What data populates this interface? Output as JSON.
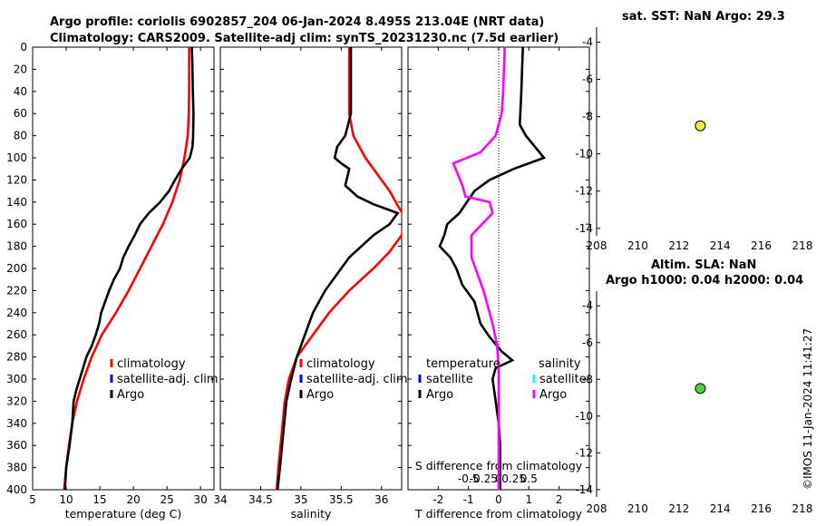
{
  "header": {
    "title_line1": "Argo profile: coriolis 6902857_204 06-Jan-2024 8.495S 213.04E (NRT data)",
    "title_line2": "Climatology: CARS2009. Satellite-adj clim: synTS_20231230.nc (7.5d earlier)"
  },
  "credit": "©IMOS 11-Jan-2024 11:41:27",
  "colors": {
    "climatology": "#ff0000",
    "satellite": "#0000ff",
    "argo": "#000000",
    "sal_diff": "#ff00ff",
    "sal_sat": "#00ffff",
    "sst_marker": "#e8f040",
    "sla_marker": "#50d040"
  },
  "chart_data": [
    {
      "id": "temperature",
      "type": "line",
      "xlabel": "temperature (deg C)",
      "xlim": [
        5,
        32
      ],
      "xticks": [
        5,
        10,
        15,
        20,
        25,
        30
      ],
      "ylim": [
        0,
        400
      ],
      "yticks": [
        0,
        20,
        40,
        60,
        80,
        100,
        120,
        140,
        160,
        180,
        200,
        220,
        240,
        260,
        280,
        300,
        320,
        340,
        360,
        380,
        400
      ],
      "legend": [
        "climatology",
        "satellite-adj. clim",
        "Argo"
      ],
      "series": [
        {
          "name": "climatology",
          "color": "#ff0000",
          "points": [
            [
              28.3,
              0
            ],
            [
              28.3,
              40
            ],
            [
              28.25,
              60
            ],
            [
              28.1,
              80
            ],
            [
              27.6,
              100
            ],
            [
              26.9,
              120
            ],
            [
              25.8,
              140
            ],
            [
              24.4,
              160
            ],
            [
              22.7,
              180
            ],
            [
              21.0,
              200
            ],
            [
              19.3,
              220
            ],
            [
              17.4,
              240
            ],
            [
              15.3,
              260
            ],
            [
              13.8,
              280
            ],
            [
              12.6,
              300
            ],
            [
              11.6,
              320
            ],
            [
              10.9,
              340
            ],
            [
              10.4,
              360
            ],
            [
              10.0,
              380
            ],
            [
              9.7,
              400
            ]
          ]
        },
        {
          "name": "Argo",
          "color": "#000000",
          "points": [
            [
              28.7,
              0
            ],
            [
              28.8,
              20
            ],
            [
              28.85,
              40
            ],
            [
              28.95,
              60
            ],
            [
              28.9,
              80
            ],
            [
              28.8,
              90
            ],
            [
              28.4,
              100
            ],
            [
              27.2,
              110
            ],
            [
              26.2,
              120
            ],
            [
              25.3,
              130
            ],
            [
              24.0,
              140
            ],
            [
              22.3,
              150
            ],
            [
              21.0,
              160
            ],
            [
              20.2,
              170
            ],
            [
              19.3,
              180
            ],
            [
              18.5,
              190
            ],
            [
              18.0,
              200
            ],
            [
              17.1,
              210
            ],
            [
              16.4,
              220
            ],
            [
              15.8,
              230
            ],
            [
              15.2,
              240
            ],
            [
              14.9,
              250
            ],
            [
              14.4,
              260
            ],
            [
              13.8,
              270
            ],
            [
              13.0,
              280
            ],
            [
              12.5,
              290
            ],
            [
              12.0,
              300
            ],
            [
              11.5,
              310
            ],
            [
              11.1,
              320
            ],
            [
              10.9,
              340
            ],
            [
              10.5,
              360
            ],
            [
              10.0,
              380
            ],
            [
              9.8,
              400
            ]
          ]
        }
      ]
    },
    {
      "id": "salinity",
      "type": "line",
      "xlabel": "salinity",
      "xlim": [
        34,
        36.25
      ],
      "xticks": [
        34,
        34.5,
        35,
        35.5,
        36
      ],
      "ylim": [
        0,
        400
      ],
      "legend": [
        "climatology",
        "satellite-adj. clim",
        "Argo"
      ],
      "series": [
        {
          "name": "climatology",
          "color": "#ff0000",
          "points": [
            [
              35.6,
              0
            ],
            [
              35.6,
              60
            ],
            [
              35.65,
              80
            ],
            [
              35.8,
              100
            ],
            [
              35.95,
              115
            ],
            [
              36.1,
              130
            ],
            [
              36.2,
              143
            ],
            [
              36.3,
              155
            ],
            [
              36.25,
              170
            ],
            [
              36.1,
              185
            ],
            [
              35.9,
              200
            ],
            [
              35.6,
              220
            ],
            [
              35.35,
              240
            ],
            [
              35.15,
              260
            ],
            [
              34.95,
              280
            ],
            [
              34.85,
              300
            ],
            [
              34.8,
              320
            ],
            [
              34.76,
              350
            ],
            [
              34.72,
              380
            ],
            [
              34.7,
              400
            ]
          ]
        },
        {
          "name": "Argo",
          "color": "#000000",
          "points": [
            [
              35.62,
              0
            ],
            [
              35.62,
              60
            ],
            [
              35.55,
              80
            ],
            [
              35.45,
              90
            ],
            [
              35.42,
              100
            ],
            [
              35.5,
              105
            ],
            [
              35.6,
              110
            ],
            [
              35.55,
              125
            ],
            [
              35.7,
              135
            ],
            [
              35.9,
              142
            ],
            [
              36.2,
              150
            ],
            [
              36.1,
              160
            ],
            [
              35.9,
              170
            ],
            [
              35.75,
              180
            ],
            [
              35.6,
              190
            ],
            [
              35.45,
              205
            ],
            [
              35.3,
              220
            ],
            [
              35.15,
              240
            ],
            [
              35.05,
              260
            ],
            [
              34.95,
              280
            ],
            [
              34.88,
              300
            ],
            [
              34.82,
              320
            ],
            [
              34.78,
              350
            ],
            [
              34.74,
              380
            ],
            [
              34.71,
              400
            ]
          ]
        }
      ]
    },
    {
      "id": "differences",
      "type": "line",
      "xlabel": "T difference from climatology",
      "xlabel_top": "S difference from climatology",
      "xlim": [
        -3,
        3
      ],
      "xticks": [
        -2,
        -1,
        0,
        1,
        2
      ],
      "xticks_s": [
        "-0.5",
        "-0.25",
        "0",
        "0.25",
        "0.5"
      ],
      "ylim": [
        0,
        400
      ],
      "legend_temperature": {
        "title": "temperature",
        "items": [
          "satellite",
          "Argo"
        ]
      },
      "legend_salinity": {
        "title": "salinity",
        "items": [
          "satellite",
          "Argo"
        ]
      },
      "series": [
        {
          "name": "T Argo",
          "color": "#000000",
          "points": [
            [
              0.8,
              0
            ],
            [
              0.75,
              40
            ],
            [
              0.7,
              70
            ],
            [
              0.9,
              80
            ],
            [
              1.5,
              100
            ],
            [
              0.5,
              110
            ],
            [
              -0.3,
              120
            ],
            [
              -0.8,
              130
            ],
            [
              -1.3,
              150
            ],
            [
              -1.7,
              160
            ],
            [
              -1.8,
              170
            ],
            [
              -1.95,
              180
            ],
            [
              -1.6,
              190
            ],
            [
              -1.4,
              200
            ],
            [
              -1.2,
              215
            ],
            [
              -0.8,
              230
            ],
            [
              -0.6,
              250
            ],
            [
              -0.3,
              262
            ],
            [
              0.1,
              275
            ],
            [
              0.45,
              283
            ],
            [
              -0.1,
              290
            ],
            [
              -0.2,
              300
            ],
            [
              -0.1,
              320
            ],
            [
              0.0,
              340
            ],
            [
              0.05,
              360
            ],
            [
              0.05,
              380
            ],
            [
              0.05,
              400
            ]
          ]
        },
        {
          "name": "S Argo",
          "color": "#ff00ff",
          "points": [
            [
              0.2,
              0
            ],
            [
              0.15,
              40
            ],
            [
              0.1,
              60
            ],
            [
              -0.1,
              80
            ],
            [
              -0.6,
              95
            ],
            [
              -1.5,
              105
            ],
            [
              -1.2,
              125
            ],
            [
              -1.1,
              135
            ],
            [
              -0.3,
              140
            ],
            [
              -0.2,
              150
            ],
            [
              -0.9,
              170
            ],
            [
              -0.9,
              190
            ],
            [
              -0.5,
              220
            ],
            [
              -0.2,
              250
            ],
            [
              -0.05,
              270
            ],
            [
              0.0,
              290
            ],
            [
              0.0,
              320
            ],
            [
              0.0,
              350
            ],
            [
              0.0,
              380
            ],
            [
              0.0,
              400
            ]
          ]
        }
      ]
    },
    {
      "id": "sat_sst_map",
      "type": "scatter",
      "title": "sat. SST: NaN Argo: 29.3",
      "xlim": [
        208,
        218
      ],
      "xticks": [
        208,
        210,
        212,
        214,
        216,
        218
      ],
      "ylim": [
        -14.4,
        -3.2
      ],
      "yticks": [
        -4,
        -6,
        -8,
        -10,
        -12,
        -14
      ],
      "points": [
        [
          213.04,
          -8.495
        ]
      ]
    },
    {
      "id": "sla_map",
      "type": "scatter",
      "title_line1": "Altim. SLA: NaN",
      "title_line2": "Argo h1000: 0.04 h2000: 0.04",
      "xlim": [
        208,
        218
      ],
      "xticks": [
        208,
        210,
        212,
        214,
        216,
        218
      ],
      "ylim": [
        -14.4,
        -3.2
      ],
      "yticks": [
        -4,
        -6,
        -8,
        -10,
        -12,
        -14
      ],
      "points": [
        [
          213.04,
          -8.495
        ]
      ]
    }
  ]
}
